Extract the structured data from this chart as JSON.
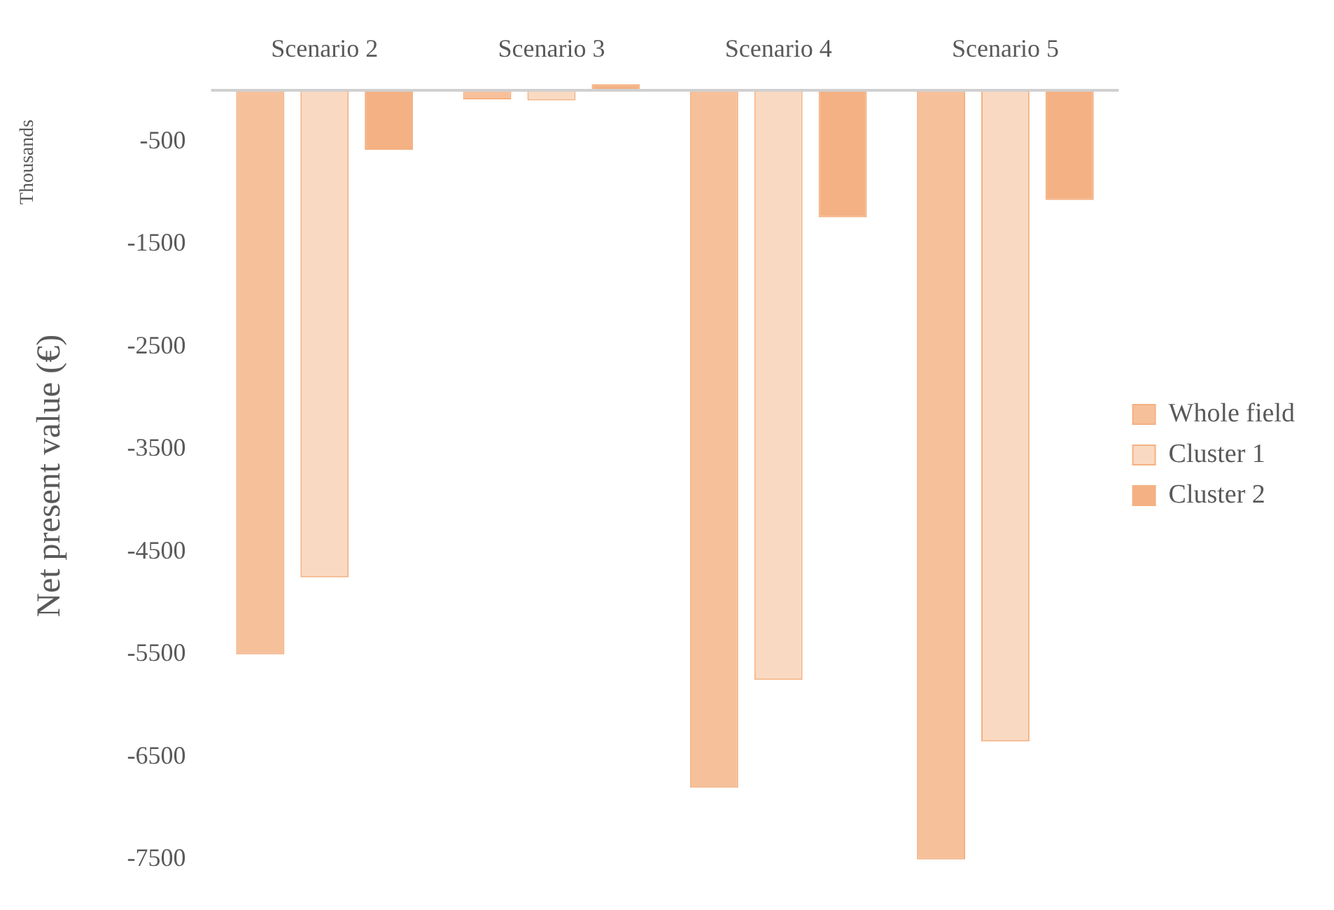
{
  "chart_data": {
    "type": "bar",
    "ylabel": "Net present value (€)",
    "annotations": [
      "Thousands"
    ],
    "categories": [
      "Scenario 2",
      "Scenario 3",
      "Scenario 4",
      "Scenario 5"
    ],
    "series": [
      {
        "name": "Whole field",
        "color": "#f6c09a",
        "values": [
          -5500,
          -90,
          -6800,
          -7500
        ]
      },
      {
        "name": "Cluster 1",
        "color": "#f9d9c2",
        "values": [
          -4750,
          -100,
          -5750,
          -6350
        ]
      },
      {
        "name": "Cluster 2",
        "color": "#f4b183",
        "values": [
          -580,
          60,
          -1240,
          -1070
        ]
      }
    ],
    "ylim": [
      -7600,
      80
    ],
    "yticks": [
      -500,
      -1500,
      -2500,
      -3500,
      -4500,
      -5500,
      -6500,
      -7500
    ],
    "grid": false,
    "legend": "right"
  }
}
